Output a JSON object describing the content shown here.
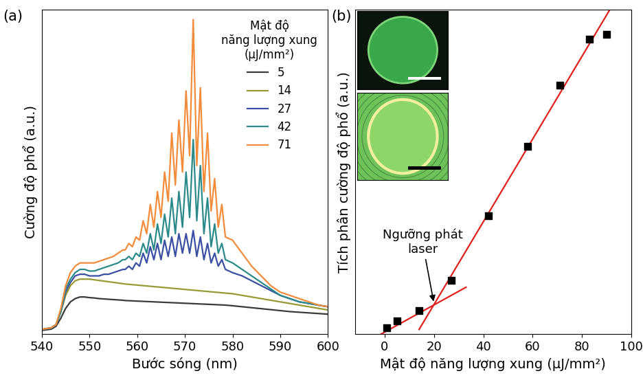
{
  "chart_data": [
    {
      "type": "line",
      "label": "(a)",
      "x_label": "Bước sóng (nm)",
      "y_label": "Cường độ phổ (a.u.)",
      "x": [
        540,
        541,
        542,
        543,
        544,
        545,
        546,
        547,
        548,
        549,
        550,
        551,
        552,
        553,
        554,
        555,
        556,
        557,
        557.5,
        558.25,
        559,
        559.75,
        560.5,
        561.25,
        562,
        562.75,
        563.5,
        564.25,
        565,
        565.75,
        566.5,
        567.25,
        568,
        568.75,
        569.5,
        570.25,
        571,
        571.75,
        572.5,
        573.25,
        574,
        574.75,
        575.5,
        576.25,
        577,
        577.75,
        578.5,
        580,
        582,
        584,
        586,
        588,
        590,
        592,
        594,
        596,
        598,
        600
      ],
      "xlim": [
        540,
        600
      ],
      "xticks": [
        540,
        550,
        560,
        570,
        580,
        590,
        600
      ],
      "ylim": [
        0,
        100
      ],
      "tick_labels": "x",
      "legend": "upper right",
      "legend_title": "Mật độ\nnăng lượng xung\n(μJ/mm²)",
      "series": [
        {
          "name": "5",
          "color": "#3a3a3a",
          "values": [
            1.2,
            1.4,
            1.6,
            2.5,
            5,
            8,
            10,
            11,
            11.5,
            11.5,
            11.3,
            11.2,
            11,
            10.9,
            10.8,
            10.7,
            10.6,
            10.5,
            10.4,
            10.35,
            10.3,
            10.25,
            10.2,
            10.15,
            10.1,
            10.05,
            10,
            9.95,
            9.9,
            9.85,
            9.8,
            9.75,
            9.7,
            9.65,
            9.6,
            9.55,
            9.5,
            9.45,
            9.4,
            9.35,
            9.3,
            9.25,
            9.2,
            9.15,
            9.1,
            9.05,
            9,
            8.8,
            8.5,
            8.2,
            7.9,
            7.6,
            7.3,
            7,
            6.8,
            6.6,
            6.4,
            6.2
          ]
        },
        {
          "name": "14",
          "color": "#999933",
          "values": [
            1.5,
            1.7,
            2,
            3,
            7,
            12,
            15,
            16.5,
            17,
            17,
            17,
            16.8,
            16.6,
            16.4,
            16.2,
            16,
            15.8,
            15.6,
            15.5,
            15.4,
            15.3,
            15.2,
            15.1,
            15,
            14.9,
            14.8,
            14.7,
            14.6,
            14.5,
            14.4,
            14.3,
            14.2,
            14.1,
            14,
            13.9,
            13.8,
            13.7,
            13.6,
            13.5,
            13.4,
            13.3,
            13.2,
            13.1,
            13,
            12.9,
            12.8,
            12.7,
            12.5,
            12,
            11.5,
            11,
            10.5,
            10,
            9.5,
            9,
            8.5,
            8,
            7.5
          ]
        },
        {
          "name": "27",
          "color": "#3a4fa3",
          "values": [
            1.5,
            1.7,
            2,
            3,
            7,
            13,
            16,
            18,
            18.5,
            18.5,
            18,
            18,
            18,
            18.5,
            18.5,
            19,
            19.5,
            20,
            20,
            21,
            20,
            22,
            21,
            25,
            22,
            27,
            23,
            28,
            23,
            29,
            24,
            30,
            24,
            31,
            25,
            31,
            25,
            32,
            24,
            30,
            23,
            28,
            22,
            25,
            21,
            23,
            20,
            19,
            18,
            16.5,
            15,
            13.5,
            12,
            11,
            10,
            9.5,
            9,
            8.5
          ]
        },
        {
          "name": "42",
          "color": "#2a8a8a",
          "values": [
            1.5,
            1.8,
            2,
            3,
            7,
            14,
            17,
            19,
            20,
            20,
            19.5,
            19.5,
            20,
            20.5,
            21,
            21.5,
            22,
            23,
            23,
            24,
            23,
            25,
            24,
            28,
            25,
            31,
            26,
            34,
            28,
            37,
            30,
            42,
            31,
            44,
            33,
            50,
            36,
            60,
            35,
            52,
            31,
            42,
            27,
            34,
            25,
            28,
            23,
            22,
            20,
            18,
            16,
            14,
            12,
            11,
            10,
            9.5,
            9,
            8.5
          ]
        },
        {
          "name": "71",
          "color": "#f28c3a",
          "values": [
            1.5,
            1.8,
            2,
            3,
            8,
            15,
            19,
            21,
            22,
            22,
            22,
            22,
            22.5,
            23,
            23.5,
            24,
            25,
            26,
            26,
            28,
            27,
            30,
            29,
            35,
            31,
            40,
            33,
            44,
            36,
            50,
            41,
            62,
            46,
            66,
            50,
            75,
            55,
            97,
            52,
            76,
            44,
            62,
            38,
            48,
            33,
            40,
            30,
            29,
            25,
            21,
            18,
            15,
            13,
            12,
            11,
            10,
            9,
            8.5
          ]
        }
      ]
    },
    {
      "type": "scatter",
      "label": "(b)",
      "x_label": "Mật độ năng lượng xung (μJ/mm²)",
      "y_label": "Tích phân cường độ phổ (a.u.)",
      "x": [
        1,
        5,
        14,
        27,
        42,
        58,
        71,
        83,
        90
      ],
      "values": [
        2.1,
        4.2,
        7.2,
        16.6,
        36.6,
        57.9,
        76.8,
        90.9,
        92.4
      ],
      "color": "#000000",
      "marker": "square",
      "xlim": [
        -12,
        100
      ],
      "xticks": [
        0,
        20,
        40,
        60,
        80,
        100
      ],
      "ylim": [
        0,
        100
      ],
      "tick_labels": "x",
      "fit_lines": [
        {
          "type": "line",
          "color": "#e0201b",
          "x": [
            -3,
            33
          ],
          "values": [
            -0.6,
            14.5
          ]
        },
        {
          "type": "line",
          "color": "#e0201b",
          "x": [
            14,
            92
          ],
          "values": [
            1.5,
            101
          ]
        }
      ],
      "annotations": [
        {
          "text": "Ngưỡng phát\nlaser",
          "x": 20,
          "y": 9.5
        }
      ]
    }
  ]
}
